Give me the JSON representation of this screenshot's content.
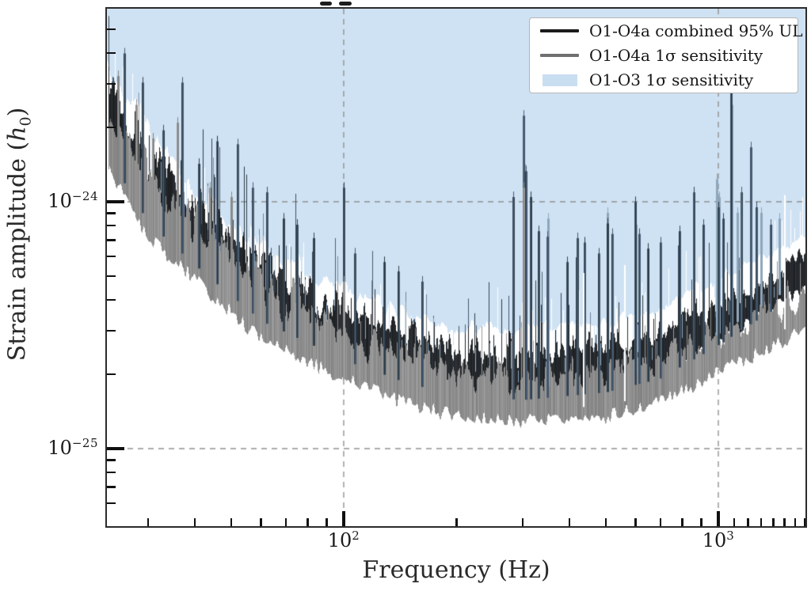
{
  "figure": {
    "xlabel": "Frequency (Hz)",
    "ylabel_prefix": "Strain amplitude (",
    "ylabel_math": "h",
    "ylabel_sub": "0",
    "ylabel_suffix": ")"
  },
  "axis": {
    "x_tick_labels": [
      {
        "base": "10",
        "exp": "2"
      },
      {
        "base": "10",
        "exp": "3"
      }
    ],
    "y_tick_labels": [
      {
        "base": "10",
        "exp": "−24"
      },
      {
        "base": "10",
        "exp": "−25"
      }
    ]
  },
  "legend": {
    "entries": [
      {
        "label": "O1-O4a combined 95% UL",
        "swatch": "line",
        "color": "#1a1a1a",
        "thickness": 4
      },
      {
        "label": "O1-O4a 1σ sensitivity",
        "swatch": "line",
        "color": "#6f6f6f",
        "thickness": 3.5
      },
      {
        "label": "O1-O3 1σ sensitivity",
        "swatch": "patch",
        "color": "#c9def1",
        "thickness": 15
      }
    ]
  },
  "chart_data": {
    "type": "line",
    "xscale": "log",
    "yscale": "log",
    "title": "",
    "xlabel": "Frequency (Hz)",
    "ylabel": "Strain amplitude (h0)",
    "xlim": [
      23.3,
      1700
    ],
    "ylim": [
      4.9e-26,
      6e-24
    ],
    "grid": true,
    "gridline_x_values": [
      100,
      1000
    ],
    "gridline_y_values": [
      1e-24,
      1e-25
    ],
    "x_major_ticks": [
      100,
      1000
    ],
    "x_minor_ticks": [
      30,
      40,
      50,
      60,
      70,
      80,
      90,
      200,
      300,
      400,
      500,
      600,
      700,
      800,
      900,
      1100,
      1200,
      1300,
      1400,
      1500,
      1600,
      1700
    ],
    "y_major_ticks": [
      1e-24,
      1e-25
    ],
    "y_minor_ticks": [
      5e-24,
      4e-24,
      3e-24,
      2e-24,
      9e-25,
      8e-25,
      7e-25,
      6e-25,
      5e-25,
      4e-25,
      3e-25,
      2e-25,
      9e-26,
      8e-26,
      7e-26,
      6e-26
    ],
    "legend_position": "upper right",
    "noise_seed": 1337,
    "series": [
      {
        "name": "O1-O4a combined 95% UL",
        "style": "noisy-line",
        "color": "#1a1a1a",
        "envelope_freq": [
          24,
          30,
          40,
          60,
          100,
          150,
          200,
          300,
          500,
          700,
          1000,
          1300,
          1700
        ],
        "envelope_low": [
          1.5e-24,
          8.5e-25,
          5.7e-25,
          3.4e-25,
          2.35e-25,
          1.88e-25,
          1.7e-25,
          1.62e-25,
          1.74e-25,
          1.98e-25,
          2.7e-25,
          3.5e-25,
          4.5e-25
        ],
        "envelope_high": [
          3.3e-24,
          1.8e-24,
          1.1e-24,
          6.5e-25,
          4.2e-25,
          3.25e-25,
          2.9e-25,
          2.8e-25,
          2.9e-25,
          3.25e-25,
          4.2e-25,
          5.1e-25,
          6.5e-25
        ],
        "peaks": [
          [
            26,
            4.2e-24
          ],
          [
            29,
            3.2e-24
          ],
          [
            33,
            2.05e-24
          ],
          [
            37,
            3.2e-24
          ],
          [
            41,
            1.5e-24
          ],
          [
            46,
            1.85e-24
          ],
          [
            52,
            1.8e-24
          ],
          [
            57,
            1.2e-24
          ],
          [
            62.5,
            1.15e-24
          ],
          [
            69,
            9e-25
          ],
          [
            75,
            8.5e-25
          ],
          [
            83,
            7.5e-25
          ],
          [
            100,
            1.2e-24
          ],
          [
            107,
            6.5e-25
          ],
          [
            128,
            6e-25
          ],
          [
            140,
            5.5e-25
          ],
          [
            162,
            5e-25
          ],
          [
            283,
            1.1e-24
          ],
          [
            302,
            2.35e-24
          ],
          [
            307,
            1.4e-24
          ],
          [
            315,
            1.1e-24
          ],
          [
            331,
            8e-25
          ],
          [
            350,
            7.6e-25
          ],
          [
            394,
            6e-25
          ],
          [
            420,
            7.5e-25
          ],
          [
            440,
            7.2e-25
          ],
          [
            480,
            6.5e-25
          ],
          [
            505,
            8.6e-25
          ],
          [
            520,
            7.8e-25
          ],
          [
            600,
            1.05e-24
          ],
          [
            615,
            7.8e-25
          ],
          [
            648,
            6.8e-25
          ],
          [
            700,
            7.2e-25
          ],
          [
            788,
            8e-25
          ],
          [
            860,
            1.15e-24
          ],
          [
            910,
            8.5e-25
          ],
          [
            1002,
            1e-24
          ],
          [
            1030,
            9e-25
          ],
          [
            1083,
            3.15e-24
          ],
          [
            1153,
            1.15e-24
          ],
          [
            1220,
            1.75e-24
          ],
          [
            1262,
            1e-24
          ],
          [
            1376,
            8.5e-25
          ]
        ]
      },
      {
        "name": "O1-O4a 1σ sensitivity",
        "style": "noisy-line",
        "color": "#6f6f6f",
        "envelope_freq": [
          24,
          30,
          40,
          60,
          100,
          150,
          200,
          300,
          500,
          700,
          1000,
          1300,
          1700
        ],
        "envelope_low": [
          1.32e-24,
          7.3e-25,
          4.9e-25,
          2.8e-25,
          1.94e-25,
          1.52e-25,
          1.37e-25,
          1.32e-25,
          1.36e-25,
          1.56e-25,
          2.05e-25,
          2.5e-25,
          3.07e-25
        ],
        "envelope_high": [
          2.9e-24,
          1.6e-24,
          9.9e-25,
          5.7e-25,
          3.5e-25,
          2.7e-25,
          2.4e-25,
          2.3e-25,
          2.4e-25,
          2.7e-25,
          3.4e-25,
          3.8e-25,
          4.6e-25
        ],
        "peaks": [
          [
            25,
            3.4e-24
          ],
          [
            28,
            2.6e-24
          ],
          [
            31,
            1.9e-24
          ],
          [
            36,
            2.2e-24
          ],
          [
            44,
            1.2e-24
          ],
          [
            50,
            1.1e-24
          ],
          [
            100,
            5e-25
          ],
          [
            302,
            1.2e-24
          ],
          [
            1530,
            4.8e-25
          ]
        ]
      },
      {
        "name": "O1-O3 1σ sensitivity",
        "style": "fill-above",
        "color": "#cfe2f3",
        "envelope_freq": [
          24,
          30,
          40,
          60,
          100,
          150,
          200,
          300,
          500,
          700,
          1000,
          1300,
          1700
        ],
        "envelope_low": [
          2.6e-24,
          1.5e-24,
          8.8e-25,
          5.3e-25,
          3.6e-25,
          2.9e-25,
          2.7e-25,
          2.6e-25,
          2.8e-25,
          3.25e-25,
          4.2e-25,
          5.3e-25,
          6.5e-25
        ],
        "envelope_high": [
          4.5e-24,
          2.3e-24,
          1.27e-24,
          7.6e-25,
          4.9e-25,
          3.8e-25,
          3.4e-25,
          3.25e-25,
          3.5e-25,
          4.1e-25,
          5.3e-25,
          6.3e-25,
          7.9e-25
        ],
        "peaks": [
          [
            302,
            1.5e-24
          ],
          [
            350,
            9e-25
          ],
          [
            505,
            9.5e-25
          ],
          [
            600,
            8.5e-25
          ],
          [
            988,
            1.3e-24
          ],
          [
            1005,
            1.1e-24
          ],
          [
            1083,
            2.6e-24
          ],
          [
            1120,
            9.5e-25
          ],
          [
            1220,
            1.3e-24
          ],
          [
            1300,
            9.5e-25
          ],
          [
            1453,
            9e-25
          ]
        ]
      }
    ],
    "spectral_gaps_hz": [
      435,
      560,
      1497
    ]
  },
  "colors": {
    "blue_fill": "#cfe2f3",
    "black_over_blue": [
      "#3d4f63",
      "#46586c",
      "#33434f",
      "#2b3a46",
      "#4c6077"
    ],
    "black_over_white": [
      "#23262a",
      "#2c3034",
      "#1d2023"
    ],
    "gray_over_white": [
      "#8a8a8a",
      "#939393",
      "#828282",
      "#9b9b9b"
    ],
    "gray_over_blue": [
      "#7b8c9e",
      "#72839b"
    ],
    "light_streak": "#8ea6bb",
    "gridline": "#909090",
    "tick": "#101010",
    "spine": "#2b2b2b"
  }
}
